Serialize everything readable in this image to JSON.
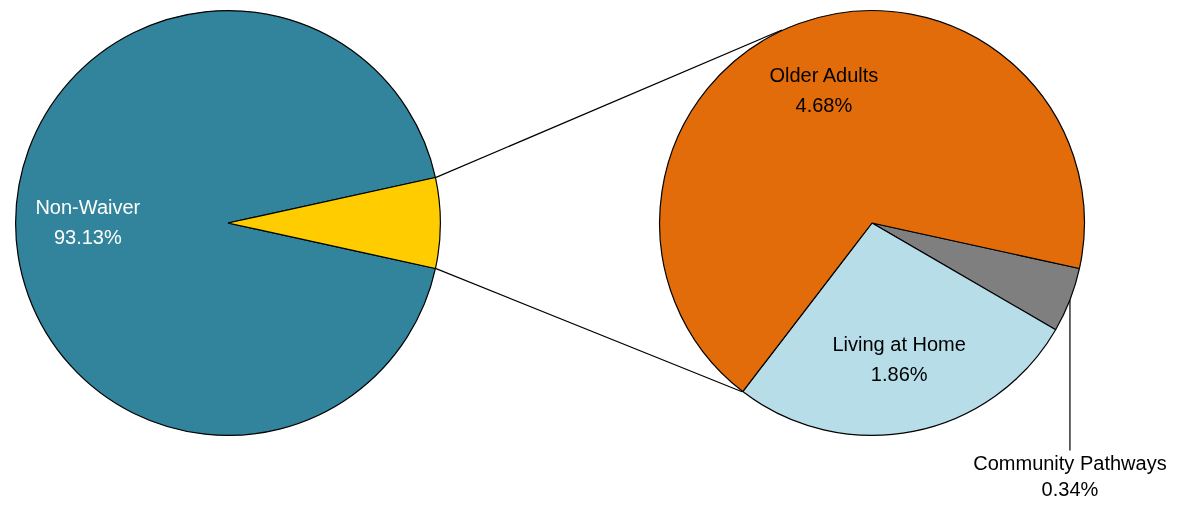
{
  "chart_data": [
    {
      "type": "pie",
      "categories": [
        "Non-Waiver",
        null
      ],
      "values": [
        93.13,
        6.87
      ],
      "colors": [
        "#31849b",
        "#ffcc00"
      ],
      "value_labels": [
        "93.13%",
        null
      ],
      "legend": false
    },
    {
      "type": "pie",
      "categories": [
        "Community Pathways",
        "Living at Home",
        "Older Adults"
      ],
      "values": [
        0.34,
        1.86,
        4.68
      ],
      "colors": [
        "#7f7f7f",
        "#b7dde8",
        "#e36c0a"
      ],
      "value_labels": [
        "0.34%",
        "1.86%",
        "4.68%"
      ],
      "legend": false
    }
  ]
}
